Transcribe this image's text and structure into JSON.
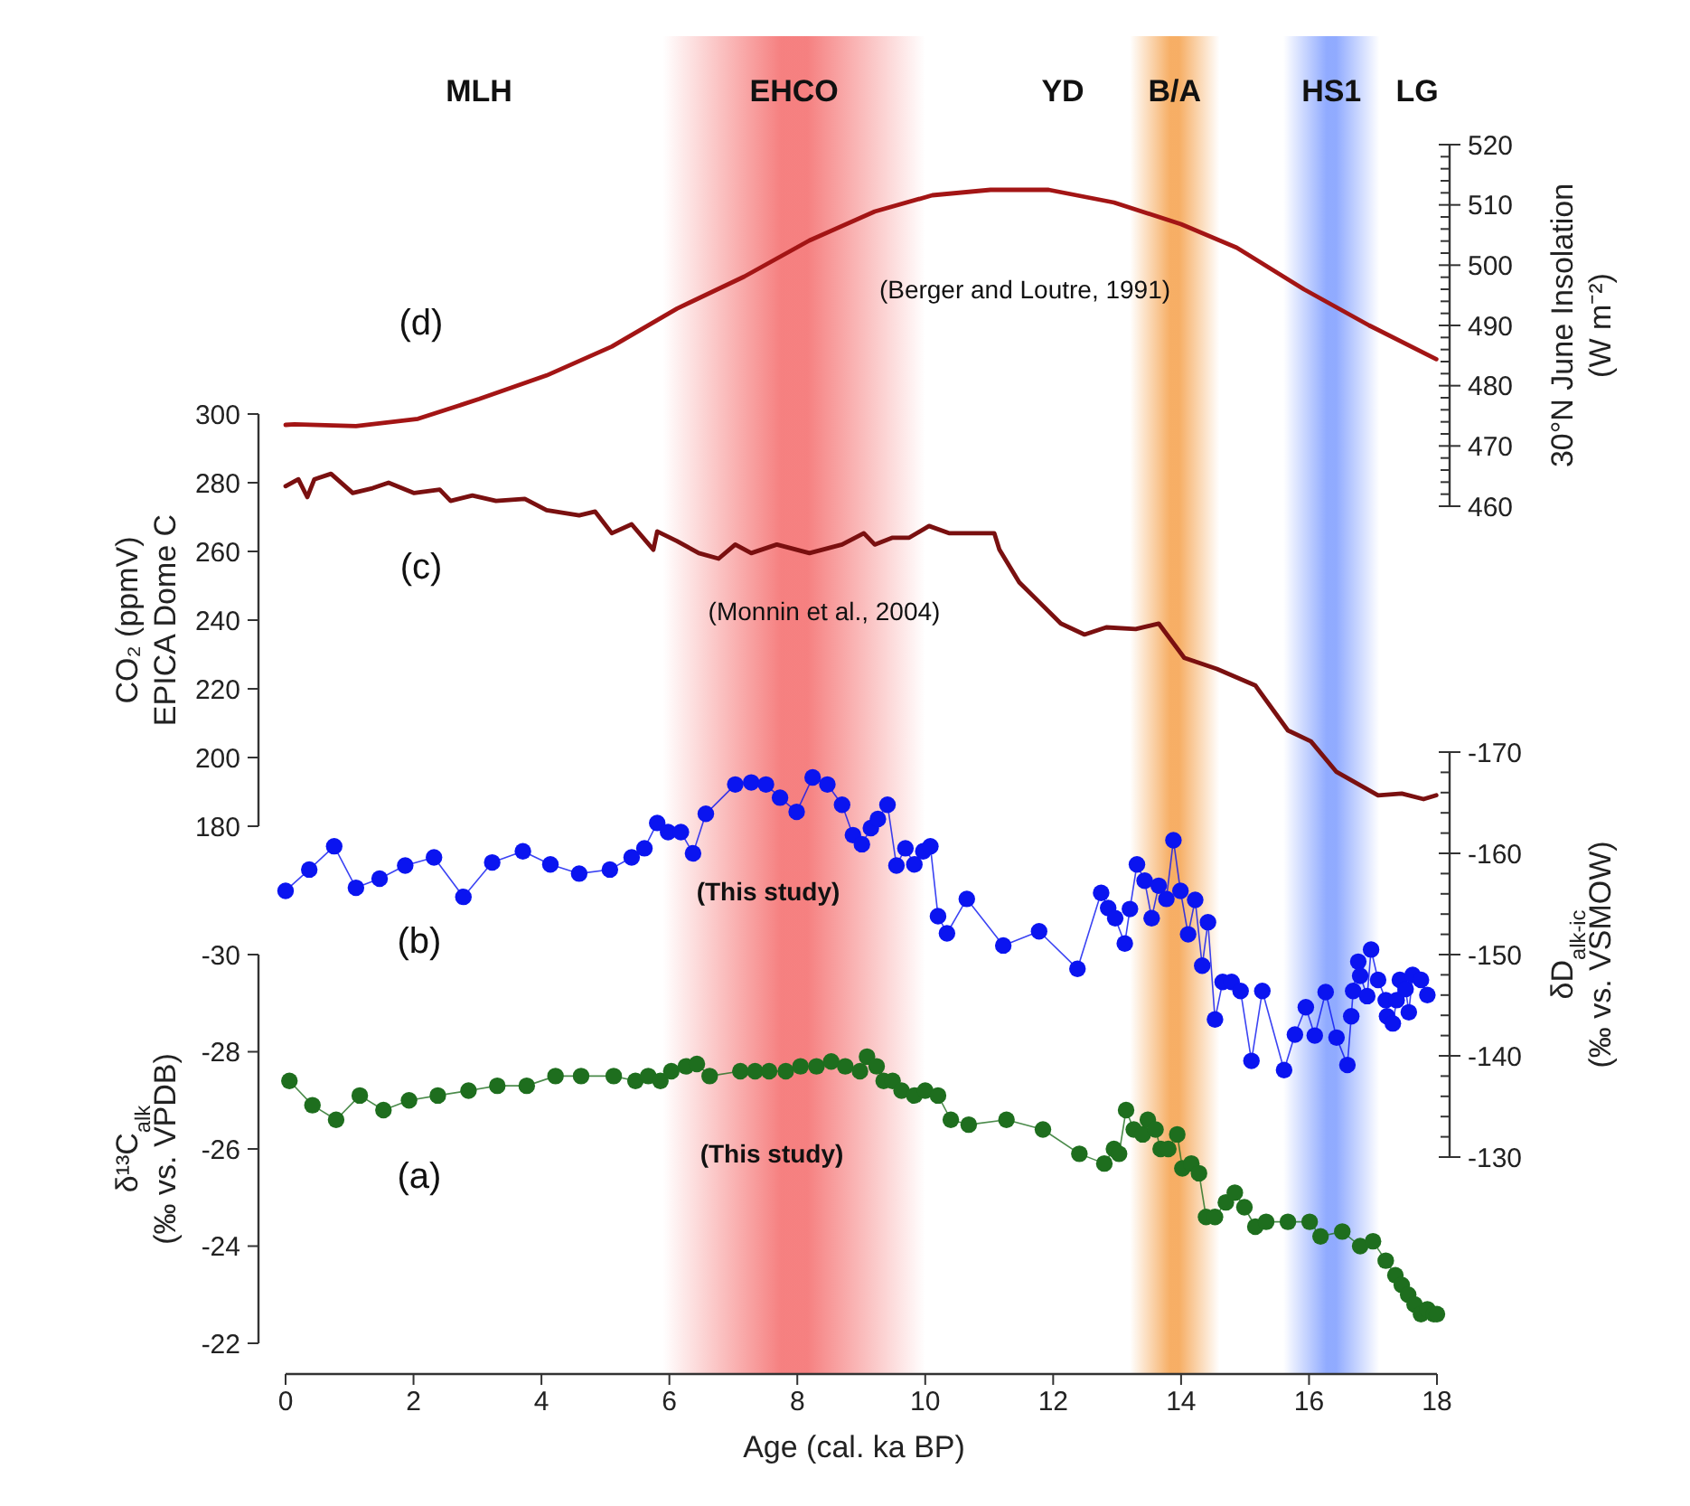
{
  "chart_data": [
    {
      "type": "line",
      "xlim": [
        0,
        18
      ],
      "tick_labels": "y",
      "ylabel": "30°N June Insolation\n(W m⁻²)",
      "ylim": [
        460,
        520
      ],
      "yticks": [
        460,
        {
          "value": 462,
          "label": null
        },
        {
          "value": 464,
          "label": null
        },
        {
          "value": 466,
          "label": null
        },
        {
          "value": 468,
          "label": null
        },
        470,
        {
          "value": 472,
          "label": null
        },
        {
          "value": 474,
          "label": null
        },
        {
          "value": 476,
          "label": null
        },
        {
          "value": 478,
          "label": null
        },
        480,
        {
          "value": 482,
          "label": null
        },
        {
          "value": 484,
          "label": null
        },
        {
          "value": 486,
          "label": null
        },
        {
          "value": 488,
          "label": null
        },
        490,
        {
          "value": 492,
          "label": null
        },
        {
          "value": 494,
          "label": null
        },
        {
          "value": 496,
          "label": null
        },
        {
          "value": 498,
          "label": null
        },
        500,
        {
          "value": 502,
          "label": null
        },
        {
          "value": 504,
          "label": null
        },
        {
          "value": 506,
          "label": null
        },
        {
          "value": 508,
          "label": null
        },
        510,
        {
          "value": 512,
          "label": null
        },
        {
          "value": 514,
          "label": null
        },
        {
          "value": 516,
          "label": null
        },
        {
          "value": 518,
          "label": null
        },
        520
      ],
      "bands": [
        {
          "axis": "x",
          "from": 5.9,
          "to": 10.0,
          "label": "EHCO",
          "color": "#f46a6a"
        },
        {
          "axis": "x",
          "from": 13.2,
          "to": 14.6,
          "label": "B/A",
          "color": "#f5a04a"
        },
        {
          "axis": "x",
          "from": 15.6,
          "to": 17.1,
          "label": "HS1",
          "color": "#7d9cff"
        }
      ],
      "annotations": [
        "MLH",
        "YD",
        "LG",
        "(d)",
        "(Berger and Loutre, 1991)"
      ],
      "series": [
        {
          "color": "#a31515",
          "x": [
            0,
            0.14,
            1.1,
            2.07,
            3.03,
            4.08,
            5.1,
            6.12,
            7.17,
            8.19,
            9.21,
            10.11,
            11.02,
            11.93,
            12.95,
            14.0,
            14.87,
            15.92,
            16.94,
            17.99
          ],
          "values": [
            473.5,
            473.6,
            473.3,
            474.5,
            477.8,
            481.7,
            486.5,
            492.8,
            498.1,
            504.1,
            508.9,
            511.6,
            512.5,
            512.5,
            510.4,
            506.8,
            502.9,
            496,
            490,
            484.4
          ]
        }
      ]
    },
    {
      "type": "line",
      "xlim": [
        0,
        18
      ],
      "tick_labels": "y",
      "ylabel": "CO₂ (ppmV)\nEPICA Dome C",
      "ylim": [
        180,
        300
      ],
      "yticks": [
        180,
        200,
        220,
        240,
        260,
        280,
        300
      ],
      "annotations": [
        "(c)",
        "(Monnin et al., 2004)"
      ],
      "series": [
        {
          "color": "#7a1010",
          "x": [
            0,
            0.2,
            0.34,
            0.45,
            0.71,
            1.05,
            1.36,
            1.61,
            2.01,
            2.41,
            2.58,
            2.92,
            3.29,
            3.74,
            4.08,
            4.59,
            4.84,
            5.1,
            5.41,
            5.75,
            5.81,
            6.12,
            6.46,
            6.77,
            7.03,
            7.28,
            7.68,
            8.19,
            8.7,
            9.04,
            9.21,
            9.49,
            9.75,
            10.06,
            10.37,
            10.71,
            11.08,
            11.16,
            11.47,
            11.78,
            12.12,
            12.49,
            12.83,
            13.29,
            13.65,
            14.05,
            14.56,
            15.16,
            15.67,
            16.03,
            16.43,
            17.08,
            17.45,
            17.79,
            17.99
          ],
          "values": [
            279,
            281,
            275.8,
            281,
            282.6,
            277,
            278.4,
            280,
            277,
            278,
            274.7,
            276.3,
            274.7,
            275.3,
            272,
            270.5,
            271.6,
            265.3,
            267.9,
            260.5,
            265.8,
            263,
            259.5,
            257.9,
            262,
            259.5,
            262,
            259.5,
            262,
            265.3,
            262,
            264,
            264,
            267.4,
            265.3,
            265.3,
            265.3,
            260.5,
            251,
            245.3,
            239,
            235.8,
            237.9,
            237.4,
            239,
            229,
            225.8,
            221,
            207.9,
            204.7,
            195.8,
            189,
            189.5,
            187.9,
            189
          ]
        }
      ]
    },
    {
      "type": "line",
      "xlim": [
        0,
        18
      ],
      "tick_labels": "y",
      "marker": "circle",
      "ylabel": "δD$_{alk-ic}$\n(‰ vs. VSMOW)",
      "ylim": [
        -130,
        -170
      ],
      "yticks": [
        -170,
        {
          "value": -168,
          "label": null
        },
        {
          "value": -166,
          "label": null
        },
        {
          "value": -164,
          "label": null
        },
        {
          "value": -162,
          "label": null
        },
        -160,
        {
          "value": -158,
          "label": null
        },
        {
          "value": -156,
          "label": null
        },
        {
          "value": -154,
          "label": null
        },
        {
          "value": -152,
          "label": null
        },
        -150,
        {
          "value": -148,
          "label": null
        },
        {
          "value": -146,
          "label": null
        },
        {
          "value": -144,
          "label": null
        },
        {
          "value": -142,
          "label": null
        },
        -140,
        {
          "value": -138,
          "label": null
        },
        {
          "value": -136,
          "label": null
        },
        {
          "value": -134,
          "label": null
        },
        {
          "value": -132,
          "label": null
        },
        -130
      ],
      "annotations": [
        "(b)",
        "(This study)"
      ],
      "series": [
        {
          "color": "#0a14f0",
          "x": [
            0,
            0.37,
            0.76,
            1.1,
            1.47,
            1.87,
            2.32,
            2.78,
            3.23,
            3.71,
            4.14,
            4.59,
            5.07,
            5.41,
            5.61,
            5.81,
            5.98,
            6.18,
            6.37,
            6.57,
            7.03,
            7.28,
            7.51,
            7.73,
            7.99,
            8.24,
            8.47,
            8.7,
            8.87,
            9.01,
            9.15,
            9.26,
            9.41,
            9.55,
            9.69,
            9.83,
            9.97,
            10.08,
            10.2,
            10.34,
            10.65,
            11.22,
            11.78,
            12.38,
            12.75,
            12.86,
            12.97,
            13.12,
            13.2,
            13.31,
            13.43,
            13.54,
            13.65,
            13.77,
            13.88,
            13.99,
            14.11,
            14.22,
            14.33,
            14.42,
            14.53,
            14.65,
            14.79,
            14.93,
            15.1,
            15.27,
            15.61,
            15.78,
            15.95,
            16.09,
            16.26,
            16.43,
            16.6,
            16.66,
            16.69,
            16.77,
            16.8,
            16.91,
            16.97,
            17.08,
            17.2,
            17.22,
            17.31,
            17.37,
            17.42,
            17.51,
            17.56,
            17.62,
            17.75,
            17.85
          ],
          "values": [
            -156.3,
            -158.4,
            -160.7,
            -156.6,
            -157.5,
            -158.8,
            -159.6,
            -155.7,
            -159.1,
            -160.2,
            -158.9,
            -158.0,
            -158.4,
            -159.6,
            -160.5,
            -163.0,
            -162.1,
            -162.1,
            -160.0,
            -163.9,
            -166.8,
            -167.0,
            -166.8,
            -165.5,
            -164.1,
            -167.5,
            -166.8,
            -164.8,
            -161.8,
            -160.9,
            -162.5,
            -163.4,
            -164.8,
            -158.8,
            -160.5,
            -158.9,
            -160.2,
            -160.7,
            -153.8,
            -152.1,
            -155.5,
            -150.9,
            -152.3,
            -148.6,
            -156.1,
            -154.6,
            -153.6,
            -151.1,
            -154.5,
            -158.9,
            -157.3,
            -153.6,
            -156.8,
            -155.5,
            -161.3,
            -156.3,
            -152.0,
            -155.4,
            -148.9,
            -153.2,
            -143.6,
            -147.3,
            -147.3,
            -146.4,
            -139.5,
            -146.4,
            -138.6,
            -142.1,
            -144.8,
            -142.0,
            -146.3,
            -141.8,
            -139.1,
            -143.9,
            -146.4,
            -149.3,
            -147.9,
            -145.9,
            -150.5,
            -147.5,
            -145.5,
            -143.9,
            -143.2,
            -145.5,
            -147.5,
            -146.6,
            -144.3,
            -148.0,
            -147.5,
            -146.0
          ]
        }
      ]
    },
    {
      "type": "line",
      "xlim": [
        0,
        18
      ],
      "xticks": [
        0,
        2,
        4,
        6,
        8,
        10,
        12,
        14,
        16,
        18
      ],
      "xlabel": "Age (cal. ka BP)",
      "marker": "circle",
      "ylabel": "δ¹³C$_{alk}$\n(‰ vs. VPDB)",
      "ylim": [
        -22,
        -30
      ],
      "yticks": [
        -30,
        -28,
        -26,
        -24,
        -22
      ],
      "annotations": [
        "(a)",
        "(This study)"
      ],
      "series": [
        {
          "color": "#1e6e1e",
          "x": [
            0.06,
            0.42,
            0.79,
            1.16,
            1.53,
            1.93,
            2.38,
            2.86,
            3.31,
            3.77,
            4.22,
            4.62,
            5.13,
            5.47,
            5.67,
            5.86,
            6.03,
            6.26,
            6.43,
            6.63,
            7.11,
            7.34,
            7.56,
            7.82,
            8.05,
            8.3,
            8.53,
            8.75,
            8.98,
            9.09,
            9.24,
            9.35,
            9.49,
            9.63,
            9.83,
            10.0,
            10.2,
            10.4,
            10.68,
            11.27,
            11.84,
            12.41,
            12.8,
            12.95,
            13.03,
            13.14,
            13.26,
            13.4,
            13.48,
            13.6,
            13.68,
            13.8,
            13.94,
            14.02,
            14.16,
            14.28,
            14.39,
            14.53,
            14.7,
            14.84,
            14.99,
            15.16,
            15.33,
            15.67,
            16.01,
            16.18,
            16.52,
            16.8,
            17.0,
            17.2,
            17.35,
            17.45,
            17.55,
            17.65,
            17.75,
            17.85,
            17.95,
            18.0
          ],
          "values": [
            -27.4,
            -26.9,
            -26.6,
            -27.1,
            -26.8,
            -27.0,
            -27.1,
            -27.2,
            -27.3,
            -27.3,
            -27.5,
            -27.5,
            -27.5,
            -27.4,
            -27.5,
            -27.4,
            -27.6,
            -27.7,
            -27.75,
            -27.5,
            -27.6,
            -27.6,
            -27.6,
            -27.6,
            -27.7,
            -27.7,
            -27.8,
            -27.7,
            -27.6,
            -27.9,
            -27.7,
            -27.4,
            -27.4,
            -27.2,
            -27.1,
            -27.2,
            -27.1,
            -26.6,
            -26.5,
            -26.6,
            -26.4,
            -25.9,
            -25.7,
            -26.0,
            -25.9,
            -26.8,
            -26.4,
            -26.3,
            -26.6,
            -26.4,
            -26.0,
            -26.0,
            -26.3,
            -25.6,
            -25.7,
            -25.5,
            -24.6,
            -24.6,
            -24.9,
            -25.1,
            -24.8,
            -24.4,
            -24.5,
            -24.5,
            -24.5,
            -24.2,
            -24.3,
            -24.0,
            -24.1,
            -23.7,
            -23.4,
            -23.2,
            -23.0,
            -22.8,
            -22.6,
            -22.7,
            -22.6,
            -22.6
          ]
        }
      ]
    }
  ]
}
